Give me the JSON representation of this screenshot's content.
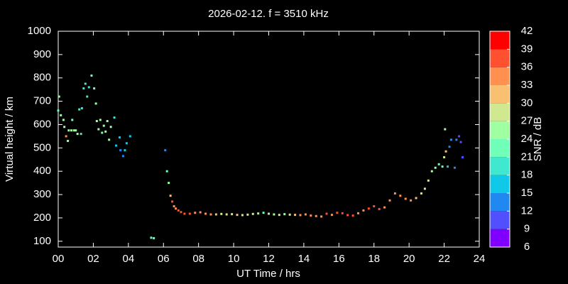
{
  "chart_data": {
    "type": "scatter",
    "title": "2026-02-12. f = 3510 kHz",
    "x_label": "UT Time / hrs",
    "y_label": "Virtual height / km",
    "colorbar_label": "SNR / dB",
    "xlim": [
      0,
      24
    ],
    "xticks": [
      {
        "value": 0,
        "label": "00"
      },
      {
        "value": 2,
        "label": "02"
      },
      {
        "value": 4,
        "label": "04"
      },
      {
        "value": 6,
        "label": "06"
      },
      {
        "value": 8,
        "label": "08"
      },
      10,
      12,
      14,
      16,
      18,
      20,
      22,
      24
    ],
    "ylim": [
      75,
      1000
    ],
    "yticks": [
      100,
      200,
      300,
      400,
      500,
      600,
      700,
      800,
      900,
      1000
    ],
    "clim": [
      6,
      42
    ],
    "cticks": [
      6,
      9,
      12,
      15,
      18,
      21,
      24,
      27,
      30,
      33,
      36,
      39,
      42
    ],
    "colors": [
      "#8000ff",
      "#5050ff",
      "#2088f0",
      "#10c8e8",
      "#40e8d0",
      "#70ffb8",
      "#a0ffa0",
      "#d0e890",
      "#f8c070",
      "#ff9050",
      "#ff5030",
      "#ff0000"
    ],
    "x": [
      0.0,
      0.05,
      0.15,
      0.3,
      0.35,
      0.45,
      0.55,
      0.6,
      0.75,
      0.8,
      0.9,
      1.0,
      1.1,
      1.2,
      1.3,
      1.35,
      1.45,
      1.55,
      1.65,
      1.75,
      1.9,
      2.05,
      2.15,
      2.2,
      2.3,
      2.4,
      2.5,
      2.6,
      2.7,
      2.8,
      2.9,
      3.0,
      3.2,
      3.3,
      3.5,
      3.55,
      3.7,
      3.8,
      3.9,
      4.1,
      5.3,
      5.45,
      6.1,
      6.2,
      6.3,
      6.4,
      6.5,
      6.6,
      6.7,
      6.85,
      7.0,
      7.2,
      7.5,
      7.8,
      8.1,
      8.4,
      8.7,
      9.0,
      9.3,
      9.6,
      9.9,
      10.2,
      10.5,
      10.8,
      11.1,
      11.4,
      11.7,
      12.0,
      12.3,
      12.6,
      12.9,
      13.2,
      13.5,
      13.8,
      14.1,
      14.4,
      14.7,
      15.0,
      15.3,
      15.6,
      15.9,
      16.2,
      16.5,
      16.8,
      17.1,
      17.4,
      17.7,
      18.0,
      18.3,
      18.6,
      18.9,
      19.2,
      19.5,
      19.8,
      20.1,
      20.4,
      20.7,
      20.9,
      21.1,
      21.3,
      21.5,
      21.7,
      21.9,
      22.0,
      22.1,
      22.05,
      22.2,
      22.3,
      22.4,
      22.6,
      22.7,
      22.85,
      22.95,
      23.05
    ],
    "values": [
      660,
      720,
      640,
      620,
      590,
      550,
      530,
      575,
      575,
      620,
      575,
      575,
      560,
      665,
      560,
      670,
      755,
      775,
      720,
      760,
      810,
      755,
      690,
      615,
      580,
      620,
      565,
      595,
      570,
      615,
      535,
      590,
      630,
      510,
      545,
      490,
      465,
      490,
      520,
      550,
      115,
      113,
      490,
      400,
      350,
      295,
      270,
      250,
      240,
      232,
      225,
      218,
      218,
      222,
      224,
      218,
      215,
      215,
      217,
      215,
      216,
      213,
      212,
      214,
      217,
      219,
      222,
      218,
      215,
      213,
      216,
      214,
      213,
      212,
      215,
      210,
      208,
      206,
      218,
      213,
      222,
      220,
      212,
      210,
      220,
      232,
      240,
      250,
      238,
      245,
      275,
      305,
      295,
      282,
      275,
      285,
      305,
      325,
      360,
      400,
      415,
      430,
      420,
      460,
      485,
      580,
      420,
      505,
      535,
      415,
      535,
      550,
      525,
      460
    ],
    "snr": [
      21,
      24,
      24,
      24,
      24,
      33,
      24,
      24,
      24,
      21,
      24,
      24,
      24,
      18,
      18,
      18,
      18,
      18,
      18,
      18,
      21,
      21,
      24,
      24,
      24,
      24,
      21,
      24,
      24,
      24,
      24,
      24,
      18,
      15,
      15,
      12,
      12,
      15,
      15,
      15,
      21,
      21,
      12,
      21,
      24,
      30,
      36,
      33,
      33,
      36,
      36,
      36,
      36,
      33,
      33,
      33,
      33,
      30,
      27,
      27,
      27,
      30,
      27,
      27,
      27,
      24,
      21,
      27,
      24,
      27,
      24,
      27,
      30,
      33,
      33,
      33,
      33,
      33,
      36,
      33,
      36,
      36,
      36,
      36,
      33,
      33,
      36,
      36,
      36,
      33,
      33,
      33,
      33,
      33,
      33,
      30,
      27,
      27,
      27,
      24,
      24,
      21,
      21,
      27,
      30,
      24,
      15,
      12,
      12,
      12,
      12,
      9,
      9,
      9
    ]
  }
}
